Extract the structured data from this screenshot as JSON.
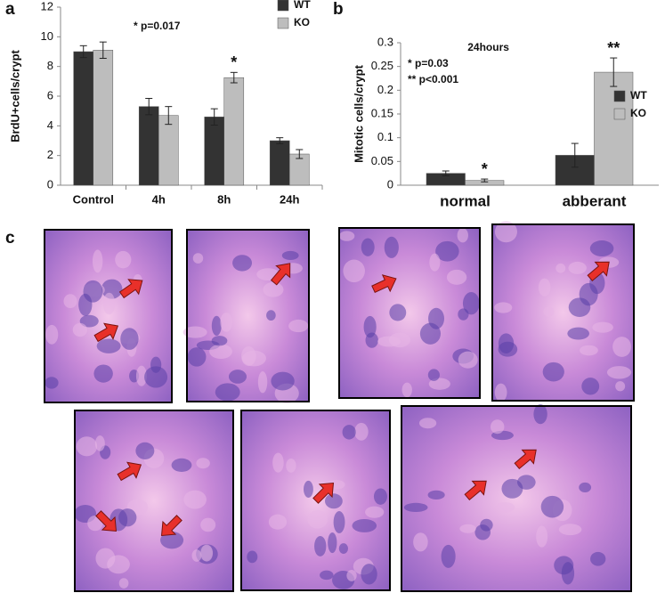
{
  "panel_labels": [
    "a",
    "b",
    "c"
  ],
  "chart_data": [
    {
      "type": "bar",
      "ylabel": "BrdU+cells/crypt",
      "categories": [
        "Control",
        "4h",
        "8h",
        "24h"
      ],
      "series": [
        {
          "name": "WT",
          "color": "#333333",
          "values": [
            9.0,
            5.3,
            4.6,
            3.0
          ],
          "errors": [
            0.4,
            0.55,
            0.55,
            0.2
          ],
          "significance": [
            null,
            null,
            null,
            null
          ]
        },
        {
          "name": "KO",
          "color": "#bdbdbd",
          "values": [
            9.1,
            4.7,
            7.25,
            2.1
          ],
          "errors": [
            0.55,
            0.6,
            0.35,
            0.3
          ],
          "significance": [
            null,
            null,
            "*",
            null
          ]
        }
      ],
      "ylim": [
        0,
        12
      ],
      "yticks": [
        0,
        2,
        4,
        6,
        8,
        10,
        12
      ],
      "legend": "upper right",
      "annotations": [
        "*  p=0.017"
      ]
    },
    {
      "type": "bar",
      "ylabel": "Mitotic cells/crypt",
      "subtitle": "24hours",
      "categories": [
        "normal",
        "abberant"
      ],
      "series": [
        {
          "name": "WT",
          "color": "#333333",
          "values": [
            0.025,
            0.063
          ],
          "errors": [
            0.005,
            0.025
          ],
          "significance": [
            null,
            null
          ]
        },
        {
          "name": "KO",
          "color": "#bdbdbd",
          "values": [
            0.01,
            0.238
          ],
          "errors": [
            0.003,
            0.03
          ],
          "significance": [
            "*",
            "**"
          ]
        }
      ],
      "ylim": [
        0,
        0.3
      ],
      "yticks": [
        0,
        0.05,
        0.1,
        0.15,
        0.2,
        0.25,
        0.3
      ],
      "legend": "center right",
      "annotations": [
        "*   p=0.03",
        "** p<0.001"
      ]
    }
  ]
}
